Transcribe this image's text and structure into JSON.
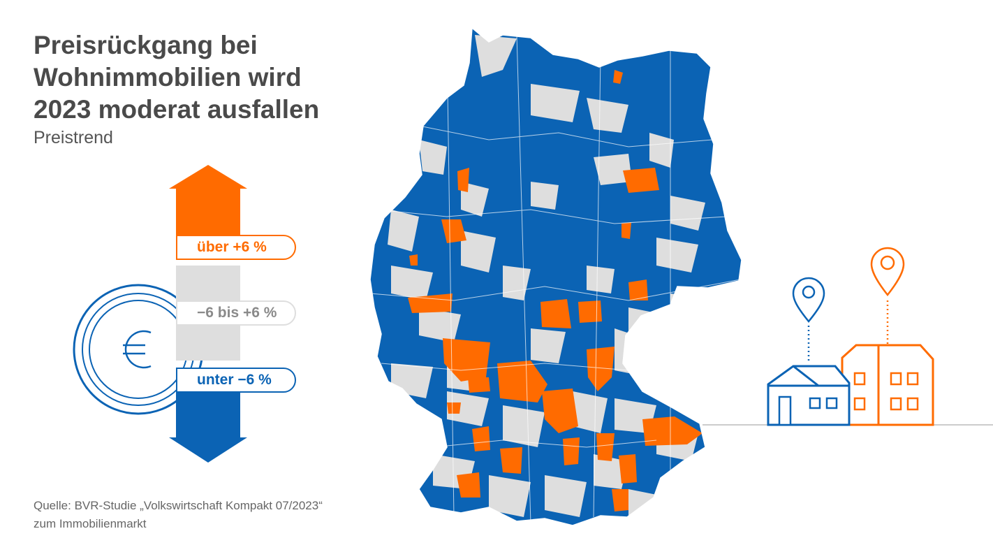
{
  "header": {
    "title_lines": [
      "Preisrückgang bei",
      "Wohnimmobilien wird",
      "2023 moderat ausfallen"
    ],
    "subtitle": "Preistrend"
  },
  "legend": {
    "items": [
      {
        "label": "über +6 %",
        "color": "#ff6b00"
      },
      {
        "label": "−6 bis +6 %",
        "color": "#dedede"
      },
      {
        "label": "unter −6 %",
        "color": "#0b63b4"
      }
    ]
  },
  "icons": [
    "euro-coin-icon",
    "up-arrow-icon",
    "down-arrow-icon",
    "location-pin-icon",
    "house-icon",
    "apartment-building-icon"
  ],
  "source": {
    "line1": "Quelle: BVR-Studie „Volkswirtschaft Kompakt 07/2023“",
    "line2": "zum Immobilienmarkt"
  },
  "colors": {
    "price_up": "#ff6b00",
    "stable": "#dedede",
    "price_down": "#0b63b4",
    "text": "#4a4a4a"
  }
}
